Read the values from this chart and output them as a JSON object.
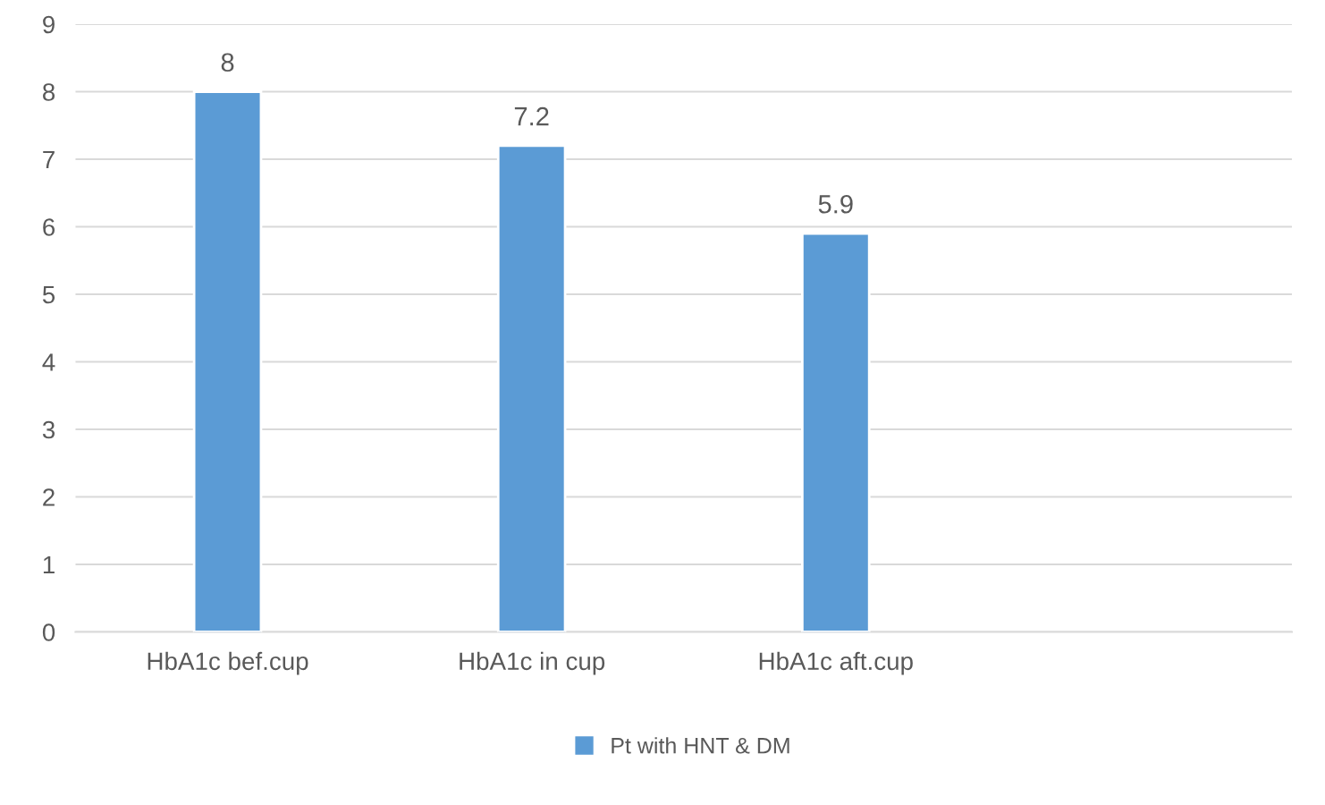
{
  "chart_data": {
    "type": "bar",
    "categories": [
      "HbA1c bef.cup",
      "HbA1c in cup",
      "HbA1c aft.cup",
      null
    ],
    "series": [
      {
        "name": "Pt with HNT & DM",
        "color": "#5b9bd5",
        "values": [
          8,
          7.2,
          5.9,
          null
        ]
      }
    ],
    "ylim": [
      0,
      9
    ],
    "yticks": [
      0,
      1,
      2,
      3,
      4,
      5,
      6,
      7,
      8,
      9
    ],
    "grid": "y",
    "legend": "bottom",
    "data_labels": true
  }
}
